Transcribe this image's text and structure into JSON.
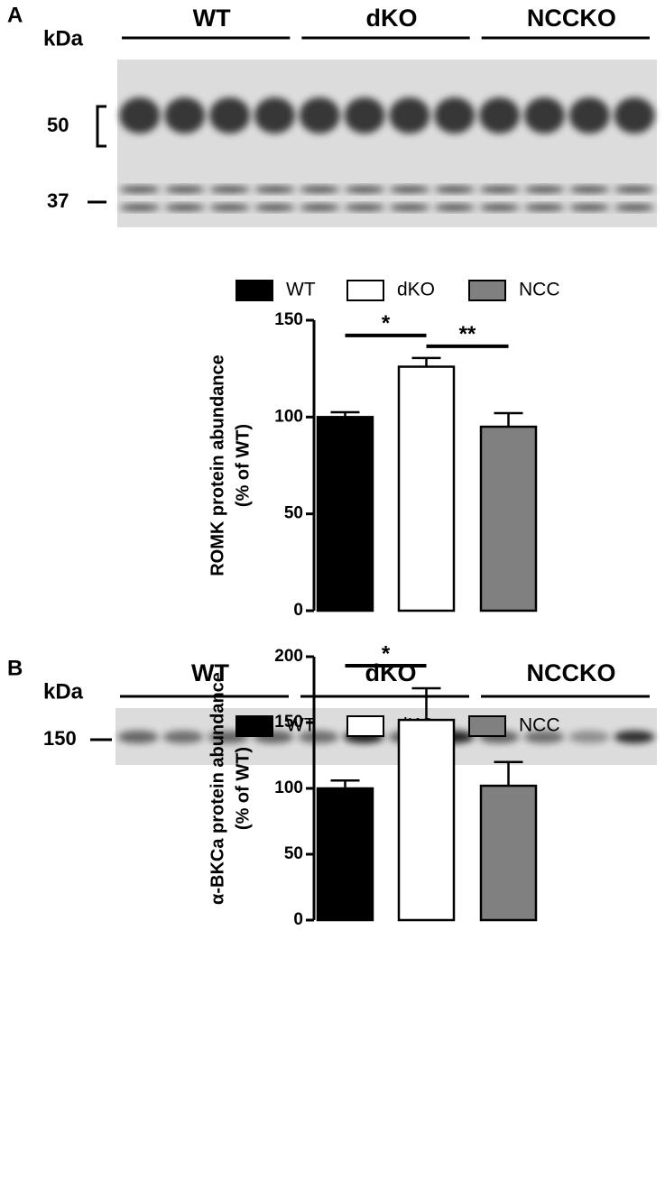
{
  "panels": [
    {
      "label": "A",
      "unit": "kDa",
      "groups": [
        "WT",
        "dKO",
        "NCCKO"
      ],
      "markers": [
        "50",
        "37"
      ]
    },
    {
      "label": "B",
      "unit": "kDa",
      "groups": [
        "WT",
        "dKO",
        "NCCKO"
      ],
      "markers": [
        "150"
      ]
    }
  ],
  "chart_data": [
    {
      "type": "bar",
      "ylabel": [
        "ROMK protein abundance",
        "(% of WT)"
      ],
      "legend": [
        "WT",
        "dKO",
        "NCC"
      ],
      "colors": [
        "#000000",
        "#ffffff",
        "#808080"
      ],
      "values": [
        100,
        126,
        95
      ],
      "errors": [
        2.5,
        4.5,
        7
      ],
      "ylim": [
        0,
        150
      ],
      "yticks": [
        0,
        50,
        100,
        150
      ],
      "annotations": [
        {
          "text": "*",
          "from": 0,
          "to": 1
        },
        {
          "text": "**",
          "from": 1,
          "to": 2
        }
      ]
    },
    {
      "type": "bar",
      "ylabel": [
        "α-BKCa protein abundance",
        "(% of WT)"
      ],
      "legend": [
        "WT",
        "dKO",
        "NCC"
      ],
      "colors": [
        "#000000",
        "#ffffff",
        "#808080"
      ],
      "values": [
        100,
        152,
        102
      ],
      "errors": [
        6,
        24,
        18
      ],
      "ylim": [
        0,
        200
      ],
      "yticks": [
        0,
        50,
        100,
        150,
        200
      ],
      "annotations": [
        {
          "text": "*",
          "from": 0,
          "to": 1
        }
      ]
    }
  ]
}
